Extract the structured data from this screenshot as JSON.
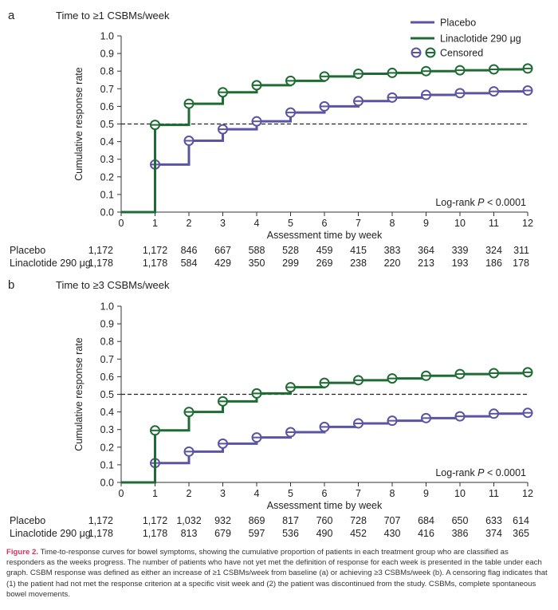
{
  "chart_data": [
    {
      "type": "line",
      "step": true,
      "panel_label": "a",
      "title": "Time to ≥1 CSBMs/week",
      "xlabel": "Assessment time by week",
      "ylabel": "Cumulative response rate",
      "xlim": [
        0,
        12
      ],
      "ylim": [
        0.0,
        1.0
      ],
      "x_ticks": [
        "0",
        "1",
        "2",
        "3",
        "4",
        "5",
        "6",
        "7",
        "8",
        "9",
        "10",
        "11",
        "12"
      ],
      "y_ticks": [
        "0.0",
        "0.1",
        "0.2",
        "0.3",
        "0.4",
        "0.5",
        "0.6",
        "0.7",
        "0.8",
        "0.9",
        "1.0"
      ],
      "reference_line": 0.5,
      "annotation": {
        "prefix": "Log-rank ",
        "italic": "P",
        "suffix": " < 0.0001"
      },
      "legend_position": "top-right",
      "series": [
        {
          "name": "Placebo",
          "color": "#5b54a3",
          "x": [
            0,
            1,
            2,
            3,
            4,
            5,
            6,
            7,
            8,
            9,
            10,
            11,
            12
          ],
          "y": [
            0.0,
            0.27,
            0.405,
            0.47,
            0.515,
            0.565,
            0.6,
            0.63,
            0.65,
            0.665,
            0.675,
            0.685,
            0.69
          ]
        },
        {
          "name": "Linaclotide 290 μg",
          "color": "#1f6b34",
          "x": [
            0,
            1,
            2,
            3,
            4,
            5,
            6,
            7,
            8,
            9,
            10,
            11,
            12
          ],
          "y": [
            0.0,
            0.495,
            0.615,
            0.68,
            0.72,
            0.745,
            0.77,
            0.785,
            0.79,
            0.8,
            0.805,
            0.81,
            0.815
          ]
        }
      ],
      "censored_label": "Censored",
      "risk_table": {
        "rows": [
          {
            "label": "Placebo",
            "values": [
              "1,172",
              "1,172",
              "846",
              "667",
              "588",
              "528",
              "459",
              "415",
              "383",
              "364",
              "339",
              "324",
              "311"
            ]
          },
          {
            "label": "Linaclotide 290 μg",
            "values": [
              "1,178",
              "1,178",
              "584",
              "429",
              "350",
              "299",
              "269",
              "238",
              "220",
              "213",
              "193",
              "186",
              "178"
            ]
          }
        ]
      }
    },
    {
      "type": "line",
      "step": true,
      "panel_label": "b",
      "title": "Time to ≥3 CSBMs/week",
      "xlabel": "Assessment time by week",
      "ylabel": "Cumulative response rate",
      "xlim": [
        0,
        12
      ],
      "ylim": [
        0.0,
        1.0
      ],
      "x_ticks": [
        "0",
        "1",
        "2",
        "3",
        "4",
        "5",
        "6",
        "7",
        "8",
        "9",
        "10",
        "11",
        "12"
      ],
      "y_ticks": [
        "0.0",
        "0.1",
        "0.2",
        "0.3",
        "0.4",
        "0.5",
        "0.6",
        "0.7",
        "0.8",
        "0.9",
        "1.0"
      ],
      "reference_line": 0.5,
      "annotation": {
        "prefix": "Log-rank ",
        "italic": "P",
        "suffix": " < 0.0001"
      },
      "series": [
        {
          "name": "Placebo",
          "color": "#5b54a3",
          "x": [
            0,
            1,
            2,
            3,
            4,
            5,
            6,
            7,
            8,
            9,
            10,
            11,
            12
          ],
          "y": [
            0.0,
            0.11,
            0.175,
            0.22,
            0.255,
            0.285,
            0.315,
            0.335,
            0.35,
            0.365,
            0.375,
            0.39,
            0.395
          ]
        },
        {
          "name": "Linaclotide 290 μg",
          "color": "#1f6b34",
          "x": [
            0,
            1,
            2,
            3,
            4,
            5,
            6,
            7,
            8,
            9,
            10,
            11,
            12
          ],
          "y": [
            0.0,
            0.295,
            0.4,
            0.46,
            0.505,
            0.54,
            0.565,
            0.58,
            0.59,
            0.605,
            0.615,
            0.62,
            0.625
          ]
        }
      ],
      "risk_table": {
        "rows": [
          {
            "label": "Placebo",
            "values": [
              "1,172",
              "1,172",
              "1,032",
              "932",
              "869",
              "817",
              "760",
              "728",
              "707",
              "684",
              "650",
              "633",
              "614"
            ]
          },
          {
            "label": "Linaclotide 290 μg",
            "values": [
              "1,178",
              "1,178",
              "813",
              "679",
              "597",
              "536",
              "490",
              "452",
              "430",
              "416",
              "386",
              "374",
              "365"
            ]
          }
        ]
      }
    }
  ],
  "caption": {
    "label": "Figure 2.",
    "text": " Time-to-response curves for bowel symptoms, showing the cumulative proportion of patients in each treatment group who are classified as responders as the weeks progress. The number of patients who have not yet met the definition of response for each week is presented in the table under each graph. CSBM response was defined as either an increase of ≥1 CSBMs/week from baseline (a) or achieving ≥3 CSBMs/week (b). A censoring flag indicates that (1) the patient had not met the response criterion at a specific visit week and (2) the patient was discontinued from the study. CSBMs, complete spontaneous bowel movements."
  }
}
